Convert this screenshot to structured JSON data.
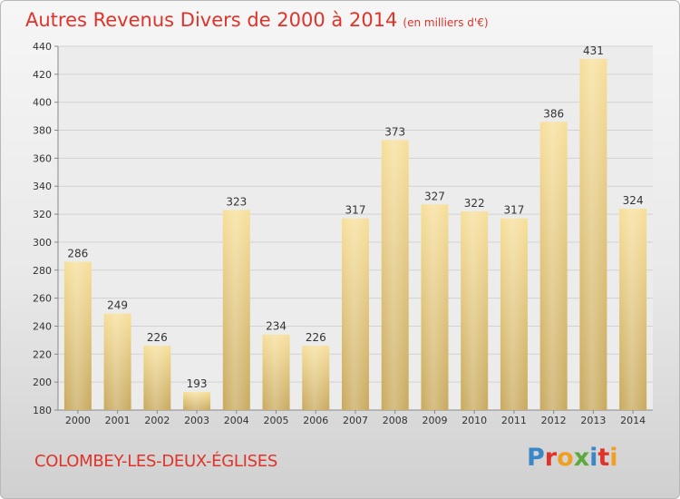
{
  "chart_data": {
    "type": "bar",
    "title": "Autres Revenus Divers de 2000 à 2014",
    "subtitle": "(en milliers d'€)",
    "categories": [
      "2000",
      "2001",
      "2002",
      "2003",
      "2004",
      "2005",
      "2006",
      "2007",
      "2008",
      "2009",
      "2010",
      "2011",
      "2012",
      "2013",
      "2014"
    ],
    "values": [
      286,
      249,
      226,
      193,
      323,
      234,
      226,
      317,
      373,
      327,
      322,
      317,
      386,
      431,
      324
    ],
    "ylim": [
      180,
      440
    ],
    "yticks": [
      180,
      200,
      220,
      240,
      260,
      280,
      300,
      320,
      340,
      360,
      380,
      400,
      420,
      440
    ],
    "xlabel": "",
    "ylabel": "",
    "grid": true,
    "bar_color": "#e8cf86"
  },
  "footer": {
    "city": "COLOMBEY-LES-DEUX-ÉGLISES",
    "logo": "Proxiti"
  },
  "colors": {
    "title": "#e0332a",
    "logo_letters": [
      "#3a87c8",
      "#e0332a",
      "#f0a020",
      "#5aaa3c",
      "#3a87c8",
      "#e0332a",
      "#f0a020"
    ]
  }
}
